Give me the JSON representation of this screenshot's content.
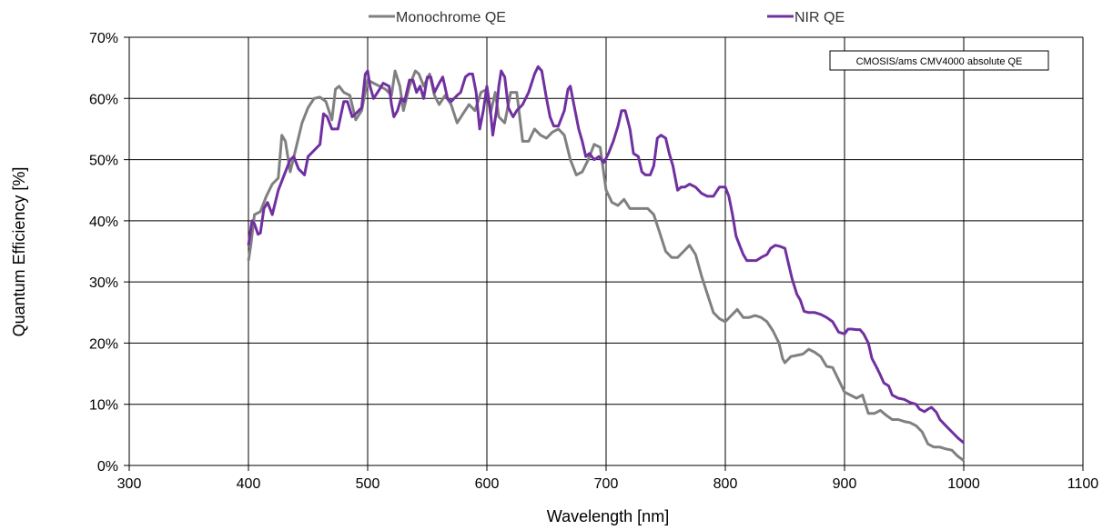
{
  "chart_data": {
    "type": "line",
    "xlabel": "Wavelength [nm]",
    "ylabel": "Quantum Efficiency [%]",
    "xlim": [
      300,
      1100
    ],
    "ylim": [
      0,
      70
    ],
    "x_ticks": [
      300,
      400,
      500,
      600,
      700,
      800,
      900,
      1000,
      1100
    ],
    "y_ticks": [
      0,
      10,
      20,
      30,
      40,
      50,
      60,
      70
    ],
    "x_tick_labels": [
      "300",
      "400",
      "500",
      "600",
      "700",
      "800",
      "900",
      "1000",
      "1100"
    ],
    "y_tick_labels": [
      "0%",
      "10%",
      "20%",
      "30%",
      "40%",
      "50%",
      "60%",
      "70%"
    ],
    "grid": true,
    "legend_position": "top",
    "annotation": "CMOSIS/ams CMV4000 absolute QE",
    "series": [
      {
        "name": "Monochrome QE",
        "color": "#808080",
        "points": [
          [
            400,
            33.5
          ],
          [
            402,
            36
          ],
          [
            405,
            41
          ],
          [
            410,
            41.5
          ],
          [
            415,
            44
          ],
          [
            420,
            46
          ],
          [
            425,
            47
          ],
          [
            428,
            54
          ],
          [
            431,
            53
          ],
          [
            435,
            48
          ],
          [
            440,
            52
          ],
          [
            445,
            56
          ],
          [
            450,
            58.5
          ],
          [
            455,
            60
          ],
          [
            460,
            60.2
          ],
          [
            465,
            59.5
          ],
          [
            470,
            56.5
          ],
          [
            473,
            61.5
          ],
          [
            476,
            62
          ],
          [
            480,
            61
          ],
          [
            485,
            60.5
          ],
          [
            490,
            56.5
          ],
          [
            495,
            58
          ],
          [
            500,
            63
          ],
          [
            505,
            62.5
          ],
          [
            510,
            62
          ],
          [
            515,
            61.5
          ],
          [
            520,
            60.5
          ],
          [
            523,
            64.5
          ],
          [
            527,
            62
          ],
          [
            530,
            58
          ],
          [
            535,
            62
          ],
          [
            540,
            64.5
          ],
          [
            543,
            64
          ],
          [
            547,
            62
          ],
          [
            552,
            64
          ],
          [
            556,
            60.5
          ],
          [
            560,
            59
          ],
          [
            565,
            60.5
          ],
          [
            570,
            59
          ],
          [
            575,
            56
          ],
          [
            580,
            57.5
          ],
          [
            585,
            59
          ],
          [
            590,
            58
          ],
          [
            595,
            61
          ],
          [
            600,
            61.5
          ],
          [
            603,
            57.5
          ],
          [
            607,
            61
          ],
          [
            610,
            57
          ],
          [
            615,
            56
          ],
          [
            620,
            61
          ],
          [
            625,
            61
          ],
          [
            630,
            53
          ],
          [
            635,
            53
          ],
          [
            640,
            55
          ],
          [
            645,
            54
          ],
          [
            650,
            53.5
          ],
          [
            655,
            54.5
          ],
          [
            660,
            55
          ],
          [
            665,
            54
          ],
          [
            670,
            50
          ],
          [
            675,
            47.5
          ],
          [
            680,
            48
          ],
          [
            685,
            50
          ],
          [
            690,
            52.5
          ],
          [
            695,
            52
          ],
          [
            700,
            45
          ],
          [
            705,
            43
          ],
          [
            710,
            42.5
          ],
          [
            715,
            43.5
          ],
          [
            720,
            42
          ],
          [
            730,
            42
          ],
          [
            735,
            42
          ],
          [
            740,
            41
          ],
          [
            745,
            38
          ],
          [
            750,
            35
          ],
          [
            755,
            34
          ],
          [
            760,
            34
          ],
          [
            765,
            35
          ],
          [
            770,
            36
          ],
          [
            775,
            34.5
          ],
          [
            780,
            31
          ],
          [
            785,
            28
          ],
          [
            790,
            25
          ],
          [
            795,
            24
          ],
          [
            800,
            23.5
          ],
          [
            805,
            24.5
          ],
          [
            810,
            25.5
          ],
          [
            815,
            24.2
          ],
          [
            820,
            24.2
          ],
          [
            825,
            24.5
          ],
          [
            830,
            24.2
          ],
          [
            835,
            23.5
          ],
          [
            840,
            22
          ],
          [
            845,
            20
          ],
          [
            848,
            17.5
          ],
          [
            850,
            16.8
          ],
          [
            855,
            17.8
          ],
          [
            860,
            18
          ],
          [
            865,
            18.2
          ],
          [
            870,
            19
          ],
          [
            875,
            18.5
          ],
          [
            880,
            17.8
          ],
          [
            885,
            16.2
          ],
          [
            890,
            16
          ],
          [
            895,
            14
          ],
          [
            900,
            12
          ],
          [
            905,
            11.5
          ],
          [
            910,
            11
          ],
          [
            915,
            11.5
          ],
          [
            920,
            8.5
          ],
          [
            925,
            8.5
          ],
          [
            930,
            9
          ],
          [
            935,
            8.2
          ],
          [
            940,
            7.5
          ],
          [
            945,
            7.5
          ],
          [
            950,
            7.2
          ],
          [
            955,
            7
          ],
          [
            960,
            6.5
          ],
          [
            965,
            5.5
          ],
          [
            970,
            3.5
          ],
          [
            975,
            3
          ],
          [
            980,
            3
          ],
          [
            985,
            2.7
          ],
          [
            990,
            2.5
          ],
          [
            995,
            1.5
          ],
          [
            1000,
            0.8
          ]
        ]
      },
      {
        "name": "NIR QE",
        "color": "#7030A0",
        "points": [
          [
            400,
            36
          ],
          [
            403,
            40
          ],
          [
            405,
            39.5
          ],
          [
            408,
            37.8
          ],
          [
            410,
            38
          ],
          [
            413,
            42
          ],
          [
            416,
            43
          ],
          [
            420,
            41
          ],
          [
            425,
            45
          ],
          [
            430,
            47.5
          ],
          [
            435,
            50
          ],
          [
            438,
            50.5
          ],
          [
            442,
            48.5
          ],
          [
            447,
            47.5
          ],
          [
            450,
            50.5
          ],
          [
            455,
            51.5
          ],
          [
            460,
            52.5
          ],
          [
            463,
            57.5
          ],
          [
            466,
            57
          ],
          [
            470,
            55
          ],
          [
            475,
            55
          ],
          [
            480,
            59.5
          ],
          [
            483,
            59.5
          ],
          [
            487,
            57
          ],
          [
            490,
            57.5
          ],
          [
            495,
            58.5
          ],
          [
            498,
            64
          ],
          [
            500,
            64.5
          ],
          [
            502,
            62
          ],
          [
            505,
            60
          ],
          [
            510,
            61.5
          ],
          [
            513,
            62.5
          ],
          [
            518,
            62
          ],
          [
            520,
            59
          ],
          [
            522,
            57
          ],
          [
            525,
            58
          ],
          [
            528,
            60
          ],
          [
            531,
            59.5
          ],
          [
            535,
            63
          ],
          [
            538,
            63
          ],
          [
            541,
            61
          ],
          [
            544,
            62
          ],
          [
            547,
            60
          ],
          [
            550,
            63.5
          ],
          [
            553,
            63.5
          ],
          [
            556,
            61
          ],
          [
            560,
            62.5
          ],
          [
            563,
            63.5
          ],
          [
            567,
            60
          ],
          [
            570,
            59.5
          ],
          [
            575,
            60.5
          ],
          [
            578,
            61
          ],
          [
            582,
            63.5
          ],
          [
            585,
            64
          ],
          [
            588,
            64
          ],
          [
            591,
            61
          ],
          [
            594,
            55
          ],
          [
            597,
            58
          ],
          [
            600,
            62
          ],
          [
            603,
            58
          ],
          [
            605,
            54
          ],
          [
            608,
            58
          ],
          [
            610,
            62
          ],
          [
            612,
            64.5
          ],
          [
            615,
            63.5
          ],
          [
            618,
            58.5
          ],
          [
            622,
            57
          ],
          [
            625,
            58
          ],
          [
            630,
            59
          ],
          [
            635,
            61
          ],
          [
            640,
            64
          ],
          [
            643,
            65.2
          ],
          [
            646,
            64.5
          ],
          [
            650,
            60
          ],
          [
            653,
            57
          ],
          [
            656,
            55.5
          ],
          [
            660,
            55.5
          ],
          [
            665,
            58
          ],
          [
            668,
            61.5
          ],
          [
            670,
            62
          ],
          [
            673,
            59
          ],
          [
            677,
            55
          ],
          [
            680,
            53
          ],
          [
            683,
            50.5
          ],
          [
            686,
            51
          ],
          [
            690,
            50
          ],
          [
            694,
            50.5
          ],
          [
            698,
            49.5
          ],
          [
            702,
            51
          ],
          [
            706,
            53
          ],
          [
            710,
            55.5
          ],
          [
            713,
            58
          ],
          [
            716,
            58
          ],
          [
            720,
            55
          ],
          [
            723,
            51
          ],
          [
            727,
            50.5
          ],
          [
            730,
            48
          ],
          [
            733,
            47.5
          ],
          [
            737,
            47.5
          ],
          [
            740,
            49
          ],
          [
            743,
            53.5
          ],
          [
            746,
            54
          ],
          [
            750,
            53.5
          ],
          [
            753,
            51
          ],
          [
            756,
            49
          ],
          [
            760,
            45
          ],
          [
            763,
            45.5
          ],
          [
            766,
            45.5
          ],
          [
            770,
            46
          ],
          [
            775,
            45.5
          ],
          [
            780,
            44.5
          ],
          [
            785,
            44
          ],
          [
            790,
            44
          ],
          [
            795,
            45.5
          ],
          [
            800,
            45.5
          ],
          [
            803,
            44
          ],
          [
            806,
            41
          ],
          [
            809,
            37.5
          ],
          [
            812,
            36
          ],
          [
            815,
            34.5
          ],
          [
            818,
            33.5
          ],
          [
            822,
            33.5
          ],
          [
            826,
            33.5
          ],
          [
            830,
            34
          ],
          [
            835,
            34.5
          ],
          [
            838,
            35.5
          ],
          [
            842,
            36
          ],
          [
            846,
            35.8
          ],
          [
            850,
            35.5
          ],
          [
            853,
            33
          ],
          [
            856,
            30.5
          ],
          [
            860,
            28
          ],
          [
            863,
            27
          ],
          [
            866,
            25.2
          ],
          [
            870,
            25
          ],
          [
            875,
            25
          ],
          [
            880,
            24.7
          ],
          [
            885,
            24.2
          ],
          [
            890,
            23.5
          ],
          [
            895,
            21.8
          ],
          [
            900,
            21.5
          ],
          [
            903,
            22.3
          ],
          [
            906,
            22.3
          ],
          [
            910,
            22.2
          ],
          [
            913,
            22.2
          ],
          [
            916,
            21.5
          ],
          [
            920,
            20
          ],
          [
            923,
            17.5
          ],
          [
            927,
            16
          ],
          [
            930,
            14.8
          ],
          [
            933,
            13.5
          ],
          [
            937,
            13
          ],
          [
            940,
            11.5
          ],
          [
            945,
            11
          ],
          [
            950,
            10.8
          ],
          [
            955,
            10.3
          ],
          [
            960,
            10
          ],
          [
            963,
            9.2
          ],
          [
            967,
            8.8
          ],
          [
            970,
            9.2
          ],
          [
            973,
            9.5
          ],
          [
            977,
            8.7
          ],
          [
            980,
            7.5
          ],
          [
            985,
            6.5
          ],
          [
            990,
            5.5
          ],
          [
            995,
            4.5
          ],
          [
            1000,
            3.7
          ]
        ]
      }
    ]
  }
}
